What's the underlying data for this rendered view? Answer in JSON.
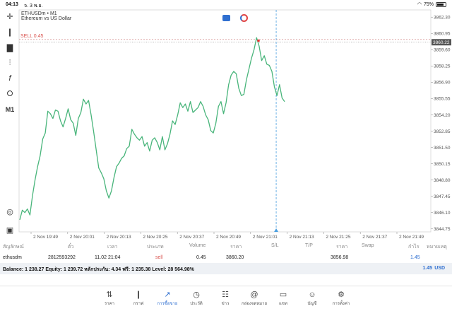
{
  "status": {
    "time": "04:13",
    "date": "จ. 3 พ.ย.",
    "battery": "75%"
  },
  "chart": {
    "symbol": "ETHUSDm • M1",
    "description": "Ethereum vs US Dollar",
    "sell_label": "SELL 0.45",
    "current_price": "3860.22",
    "timeframe": "M1"
  },
  "chart_data": {
    "type": "line",
    "ylim": [
      3844.5,
      3862.9
    ],
    "yticks": [
      "3862.30",
      "3860.95",
      "3859.60",
      "3858.25",
      "3856.90",
      "3855.55",
      "3854.20",
      "3852.85",
      "3851.50",
      "3850.15",
      "3848.80",
      "3847.45",
      "3846.10",
      "3844.75"
    ],
    "xticks": [
      "2 Nov 19:49",
      "2 Nov 20:01",
      "2 Nov 20:13",
      "2 Nov 20:25",
      "2 Nov 20:37",
      "2 Nov 20:49",
      "2 Nov 21:01",
      "2 Nov 21:13",
      "2 Nov 21:25",
      "2 Nov 21:37",
      "2 Nov 21:49"
    ],
    "series": [
      {
        "values": [
          3845.5,
          3846.3,
          3846.1,
          3846.4,
          3845.9,
          3847.5,
          3848.8,
          3849.9,
          3850.8,
          3852.2,
          3852.7,
          3854.5,
          3854.3,
          3853.9,
          3854.6,
          3854.5,
          3853.7,
          3853.2,
          3853.9,
          3854.7,
          3853.8,
          3853.5,
          3852.5,
          3853.9,
          3854.4,
          3855.5,
          3855.1,
          3855.4,
          3854.2,
          3852.8,
          3851.3,
          3849.8,
          3849.4,
          3848.9,
          3847.9,
          3847.3,
          3847.9,
          3849.0,
          3849.9,
          3850.2,
          3850.6,
          3850.8,
          3851.4,
          3851.6,
          3853.0,
          3852.6,
          3852.3,
          3852.1,
          3852.4,
          3851.6,
          3851.9,
          3851.2,
          3852.1,
          3852.3,
          3851.9,
          3851.3,
          3852.4,
          3851.3,
          3851.8,
          3852.6,
          3853.7,
          3853.4,
          3854.2,
          3855.2,
          3854.8,
          3855.1,
          3854.5,
          3855.3,
          3854.4,
          3854.6,
          3854.8,
          3855.3,
          3854.9,
          3854.2,
          3853.8,
          3852.9,
          3852.7,
          3853.5,
          3854.9,
          3855.3,
          3854.3,
          3855.2,
          3856.7,
          3857.5,
          3857.8,
          3857.6,
          3856.4,
          3855.8,
          3855.9,
          3857.1,
          3858.0,
          3858.9,
          3859.6,
          3860.6,
          3859.9,
          3858.7,
          3859.1,
          3858.4,
          3858.3,
          3857.8,
          3856.5,
          3855.8,
          3856.7,
          3855.6,
          3855.3
        ],
        "color": "#49b57b"
      }
    ],
    "sell_level": 3860.45,
    "current_level": 3860.22,
    "crosshair_tick_index": 6.7
  },
  "table": {
    "headers": {
      "symbol": "สัญลักษณ์",
      "ticket": "ตั๋ว",
      "time": "เวลา",
      "type": "ประเภท",
      "volume": "Volume",
      "price": "ราคา",
      "sl": "S/L",
      "tp": "T/P",
      "price2": "ราคา",
      "swap": "Swap",
      "profit": "กำไร",
      "comment": "หมายเหตุ"
    },
    "row": {
      "symbol": "ethusdm",
      "ticket": "2812593292",
      "time": "11.02 21:04",
      "type": "sell",
      "volume": "0.45",
      "price": "3860.20",
      "current": "3856.98",
      "profit": "1.45"
    },
    "balance": "Balance: 1 238.27  Equity: 1 239.72  หลักประกัน: 4.34  ฟรี: 1 235.38  Level: 28 564.98%",
    "total_profit": "1.45",
    "currency": "USD"
  },
  "nav": [
    {
      "label": "ราคา",
      "icon": "quotes-icon"
    },
    {
      "label": "กราฟ",
      "icon": "chart-icon"
    },
    {
      "label": "การซื้อขาย",
      "icon": "trade-icon"
    },
    {
      "label": "ประวัติ",
      "icon": "history-icon"
    },
    {
      "label": "ข่าว",
      "icon": "news-icon"
    },
    {
      "label": "กล่องจดหมาย",
      "icon": "mailbox-icon"
    },
    {
      "label": "แชท",
      "icon": "chat-icon"
    },
    {
      "label": "บัญชี",
      "icon": "account-icon"
    },
    {
      "label": "การตั้งค่า",
      "icon": "settings-icon"
    }
  ],
  "colors": {
    "accent": "#2f6fd0",
    "line": "#49b57b",
    "sell": "#d9534f",
    "crosshair": "#4a9fe0"
  }
}
